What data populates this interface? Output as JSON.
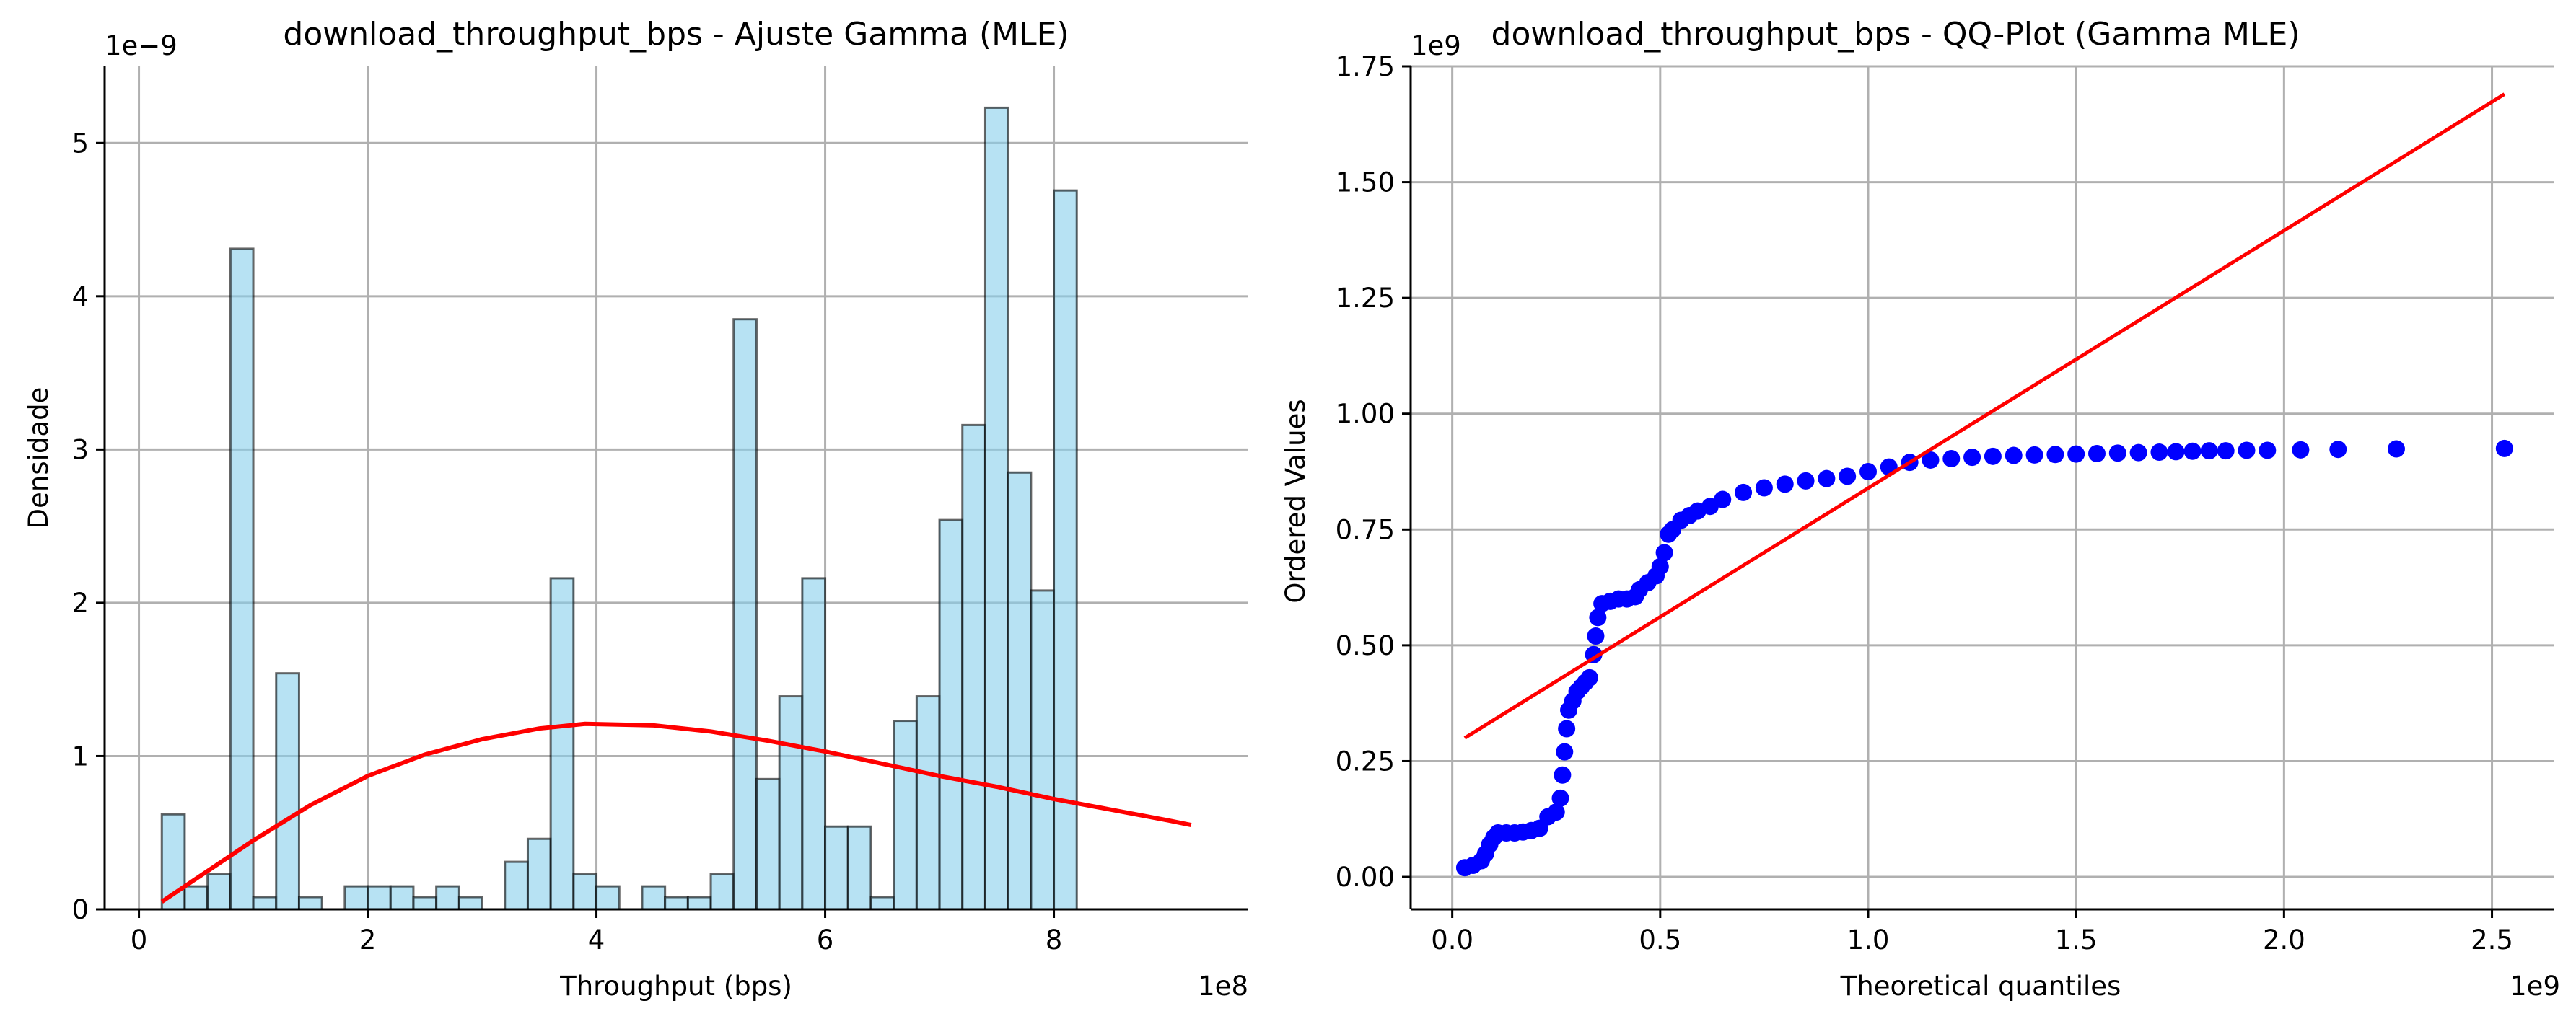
{
  "chart_data": [
    {
      "type": "bar",
      "title": "download_throughput_bps - Ajuste Gamma (MLE)",
      "xlabel": "Throughput (bps)",
      "ylabel": "Densidade",
      "x_offset_label": "1e8",
      "y_offset_label": "1e−9",
      "x_unit_scale": 100000000,
      "y_unit_scale": 1e-09,
      "xlim": [
        -0.3,
        9.7
      ],
      "ylim": [
        0,
        5.5
      ],
      "xticks": [
        0,
        2,
        4,
        6,
        8
      ],
      "xtick_labels": [
        "0",
        "2",
        "4",
        "6",
        "8"
      ],
      "yticks": [
        0,
        1,
        2,
        3,
        4,
        5
      ],
      "ytick_labels": [
        "0",
        "1",
        "2",
        "3",
        "4",
        "5"
      ],
      "grid": true,
      "bin_start": 0.2,
      "bin_width": 0.2,
      "bar_color": "#87CEEB",
      "bar_edge_color": "#000000",
      "densities": [
        0.62,
        0.15,
        0.23,
        4.31,
        0.08,
        1.54,
        0.08,
        0.0,
        0.15,
        0.15,
        0.15,
        0.08,
        0.15,
        0.08,
        0.0,
        0.31,
        0.46,
        2.16,
        0.23,
        0.15,
        0.0,
        0.15,
        0.08,
        0.08,
        0.23,
        3.85,
        0.85,
        1.39,
        2.16,
        0.54,
        0.54,
        0.08,
        1.23,
        1.39,
        2.54,
        3.16,
        5.23,
        2.85,
        2.08,
        4.69
      ],
      "fit_curve": {
        "name": "Gamma MLE",
        "color": "#ff0000",
        "x": [
          0.2,
          0.5,
          1.0,
          1.5,
          2.0,
          2.5,
          3.0,
          3.5,
          3.9,
          4.5,
          5.0,
          5.5,
          6.0,
          6.5,
          7.0,
          7.5,
          8.0,
          8.5,
          9.0,
          9.2
        ],
        "y": [
          0.05,
          0.2,
          0.45,
          0.68,
          0.87,
          1.01,
          1.11,
          1.18,
          1.21,
          1.2,
          1.16,
          1.1,
          1.03,
          0.95,
          0.87,
          0.8,
          0.72,
          0.65,
          0.58,
          0.55
        ]
      }
    },
    {
      "type": "scatter",
      "title": "download_throughput_bps - QQ-Plot (Gamma MLE)",
      "xlabel": "Theoretical quantiles",
      "ylabel": "Ordered Values",
      "x_offset_label": "1e9",
      "y_offset_label": "1e9",
      "x_unit_scale": 1000000000,
      "y_unit_scale": 1000000000,
      "xlim": [
        -0.1,
        2.65
      ],
      "ylim": [
        -0.07,
        1.75
      ],
      "xticks": [
        0.0,
        0.5,
        1.0,
        1.5,
        2.0,
        2.5
      ],
      "xtick_labels": [
        "0.0",
        "0.5",
        "1.0",
        "1.5",
        "2.0",
        "2.5"
      ],
      "yticks": [
        0.0,
        0.25,
        0.5,
        0.75,
        1.0,
        1.25,
        1.5,
        1.75
      ],
      "ytick_labels": [
        "0.00",
        "0.25",
        "0.50",
        "0.75",
        "1.00",
        "1.25",
        "1.50",
        "1.75"
      ],
      "grid": true,
      "point_color": "#0000ff",
      "points": [
        [
          0.03,
          0.02
        ],
        [
          0.05,
          0.025
        ],
        [
          0.07,
          0.035
        ],
        [
          0.08,
          0.05
        ],
        [
          0.09,
          0.07
        ],
        [
          0.1,
          0.085
        ],
        [
          0.11,
          0.095
        ],
        [
          0.13,
          0.095
        ],
        [
          0.15,
          0.095
        ],
        [
          0.17,
          0.097
        ],
        [
          0.19,
          0.1
        ],
        [
          0.21,
          0.105
        ],
        [
          0.23,
          0.13
        ],
        [
          0.25,
          0.14
        ],
        [
          0.26,
          0.17
        ],
        [
          0.265,
          0.22
        ],
        [
          0.27,
          0.27
        ],
        [
          0.275,
          0.32
        ],
        [
          0.28,
          0.36
        ],
        [
          0.29,
          0.38
        ],
        [
          0.3,
          0.4
        ],
        [
          0.31,
          0.41
        ],
        [
          0.32,
          0.42
        ],
        [
          0.33,
          0.43
        ],
        [
          0.34,
          0.48
        ],
        [
          0.345,
          0.52
        ],
        [
          0.35,
          0.56
        ],
        [
          0.36,
          0.59
        ],
        [
          0.38,
          0.595
        ],
        [
          0.4,
          0.6
        ],
        [
          0.42,
          0.6
        ],
        [
          0.44,
          0.605
        ],
        [
          0.45,
          0.62
        ],
        [
          0.47,
          0.635
        ],
        [
          0.49,
          0.65
        ],
        [
          0.5,
          0.67
        ],
        [
          0.51,
          0.7
        ],
        [
          0.52,
          0.74
        ],
        [
          0.53,
          0.75
        ],
        [
          0.55,
          0.77
        ],
        [
          0.57,
          0.78
        ],
        [
          0.59,
          0.79
        ],
        [
          0.62,
          0.8
        ],
        [
          0.65,
          0.815
        ],
        [
          0.7,
          0.83
        ],
        [
          0.75,
          0.84
        ],
        [
          0.8,
          0.848
        ],
        [
          0.85,
          0.855
        ],
        [
          0.9,
          0.86
        ],
        [
          0.95,
          0.865
        ],
        [
          1.0,
          0.875
        ],
        [
          1.05,
          0.885
        ],
        [
          1.1,
          0.895
        ],
        [
          1.15,
          0.9
        ],
        [
          1.2,
          0.903
        ],
        [
          1.25,
          0.906
        ],
        [
          1.3,
          0.908
        ],
        [
          1.35,
          0.91
        ],
        [
          1.4,
          0.911
        ],
        [
          1.45,
          0.912
        ],
        [
          1.5,
          0.913
        ],
        [
          1.55,
          0.914
        ],
        [
          1.6,
          0.915
        ],
        [
          1.65,
          0.916
        ],
        [
          1.7,
          0.917
        ],
        [
          1.74,
          0.918
        ],
        [
          1.78,
          0.919
        ],
        [
          1.82,
          0.92
        ],
        [
          1.86,
          0.92
        ],
        [
          1.91,
          0.921
        ],
        [
          1.96,
          0.921
        ],
        [
          2.04,
          0.922
        ],
        [
          2.13,
          0.923
        ],
        [
          2.27,
          0.924
        ],
        [
          2.53,
          0.925
        ]
      ],
      "fit_line": {
        "color": "#ff0000",
        "x": [
          0.03,
          2.53
        ],
        "y": [
          0.3,
          1.69
        ]
      }
    }
  ]
}
